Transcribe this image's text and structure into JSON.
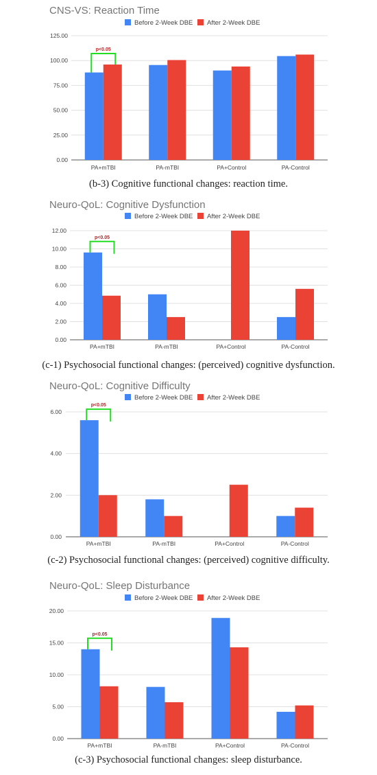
{
  "colors": {
    "before": "#4285f4",
    "after": "#ea4335",
    "bracket": "#22dd22",
    "sig_text": "#b71c1c",
    "grid": "#e0e0e0"
  },
  "charts": [
    {
      "title": "CNS-VS: Reaction Time",
      "caption": "(b-3) Cognitive functional changes: reaction time.",
      "legend": [
        "Before 2-Week DBE",
        "After 2-Week DBE"
      ],
      "ticks": [
        "0.00",
        "25.00",
        "50.00",
        "75.00",
        "100.00",
        "125.00"
      ],
      "annotation": "p<0.05"
    },
    {
      "title": "Neuro-QoL: Cognitive Dysfunction",
      "caption": "(c-1) Psychosocial functional changes: (perceived) cognitive dysfunction.",
      "legend": [
        "Before 2-Week DBE",
        "After 2-Week DBE"
      ],
      "ticks": [
        "0.00",
        "2.00",
        "4.00",
        "6.00",
        "8.00",
        "10.00",
        "12.00"
      ],
      "annotation": "p<0.05"
    },
    {
      "title": "Neuro-QoL: Cognitive Difficulty",
      "caption": "(c-2) Psychosocial functional changes: (perceived) cognitive difficulty.",
      "legend": [
        "Before 2-Week DBE",
        "After 2-Week DBE"
      ],
      "ticks": [
        "0.00",
        "2.00",
        "4.00",
        "6.00"
      ],
      "annotation": "p<0.05"
    },
    {
      "title": "Neuro-QoL: Sleep Disturbance",
      "caption": "(c-3) Psychosocial functional changes: sleep disturbance.",
      "legend": [
        "Before 2-Week DBE",
        "After 2-Week DBE"
      ],
      "ticks": [
        "0.00",
        "5.00",
        "10.00",
        "15.00",
        "20.00"
      ],
      "annotation": "p<0.05"
    }
  ],
  "chart_data": [
    {
      "type": "bar",
      "title": "CNS-VS: Reaction Time",
      "categories": [
        "PA+mTBI",
        "PA-mTBI",
        "PA+Control",
        "PA-Control"
      ],
      "series": [
        {
          "name": "Before 2-Week DBE",
          "values": [
            88,
            95.5,
            90,
            104.5
          ]
        },
        {
          "name": "After 2-Week DBE",
          "values": [
            96,
            100.5,
            94,
            106
          ]
        }
      ],
      "ylim": [
        0,
        125
      ],
      "grid": true,
      "legend_position": "top",
      "annotation": {
        "text": "p<0.05",
        "category": "PA+mTBI"
      }
    },
    {
      "type": "bar",
      "title": "Neuro-QoL: Cognitive Dysfunction",
      "categories": [
        "PA+mTBI",
        "PA-mTBI",
        "PA+Control",
        "PA-Control"
      ],
      "series": [
        {
          "name": "Before 2-Week DBE",
          "values": [
            9.6,
            5.0,
            0,
            2.5
          ]
        },
        {
          "name": "After 2-Week DBE",
          "values": [
            4.85,
            2.5,
            12.0,
            5.6
          ]
        }
      ],
      "ylim": [
        0,
        12
      ],
      "grid": true,
      "legend_position": "top",
      "annotation": {
        "text": "p<0.05",
        "category": "PA+mTBI"
      }
    },
    {
      "type": "bar",
      "title": "Neuro-QoL: Cognitive Difficulty",
      "categories": [
        "PA+mTBI",
        "PA-mTBI",
        "PA+Control",
        "PA-Control"
      ],
      "series": [
        {
          "name": "Before 2-Week DBE",
          "values": [
            5.6,
            1.8,
            0,
            1.0
          ]
        },
        {
          "name": "After 2-Week DBE",
          "values": [
            2.0,
            1.0,
            2.5,
            1.4
          ]
        }
      ],
      "ylim": [
        0,
        6
      ],
      "grid": true,
      "legend_position": "top",
      "annotation": {
        "text": "p<0.05",
        "category": "PA+mTBI"
      }
    },
    {
      "type": "bar",
      "title": "Neuro-QoL: Sleep Disturbance",
      "categories": [
        "PA+mTBI",
        "PA-mTBI",
        "PA+Control",
        "PA-Control"
      ],
      "series": [
        {
          "name": "Before 2-Week DBE",
          "values": [
            14.0,
            8.1,
            18.9,
            4.2
          ]
        },
        {
          "name": "After 2-Week DBE",
          "values": [
            8.2,
            5.7,
            14.3,
            5.2
          ]
        }
      ],
      "ylim": [
        0,
        20
      ],
      "grid": true,
      "legend_position": "top",
      "annotation": {
        "text": "p<0.05",
        "category": "PA+mTBI"
      }
    }
  ]
}
